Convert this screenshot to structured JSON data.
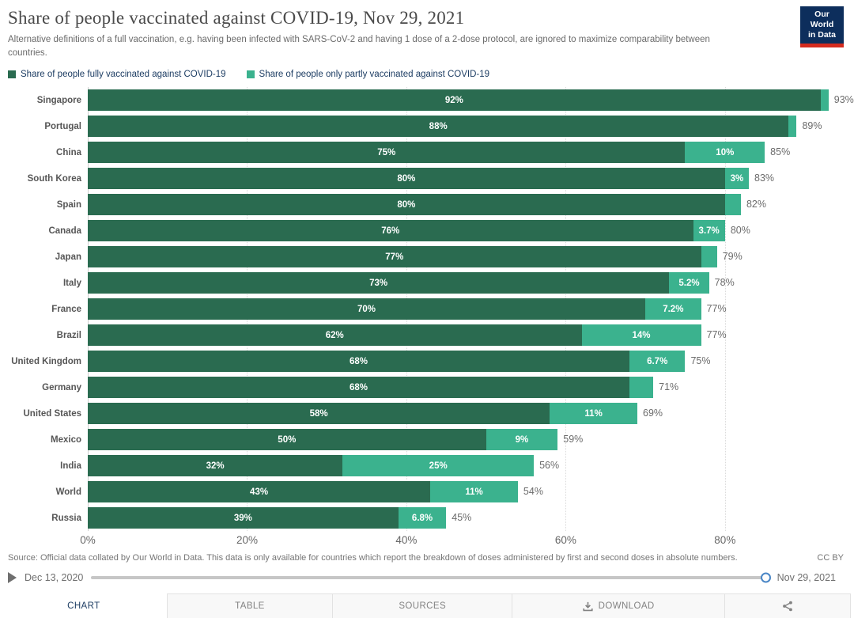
{
  "header": {
    "title": "Share of people vaccinated against COVID-19, Nov 29, 2021",
    "subtitle": "Alternative definitions of a full vaccination, e.g. having been infected with SARS-CoV-2 and having 1 dose of a 2-dose protocol, are ignored to maximize comparability between countries.",
    "logo_line1": "Our World",
    "logo_line2": "in Data",
    "logo_bg": "#0d2e5c",
    "logo_accent": "#d42b1f"
  },
  "legend": [
    {
      "label": "Share of people fully vaccinated against COVID-19",
      "color": "#2a6b50"
    },
    {
      "label": "Share of people only partly vaccinated against COVID-19",
      "color": "#3bb28e"
    }
  ],
  "chart_data": {
    "type": "bar",
    "stacked": true,
    "orientation": "horizontal",
    "title": "Share of people vaccinated against COVID-19, Nov 29, 2021",
    "series_names": [
      "Share of people fully vaccinated against COVID-19",
      "Share of people only partly vaccinated against COVID-19"
    ],
    "colors": {
      "fully": "#2a6b50",
      "partly": "#3bb28e"
    },
    "x_ticks": [
      "0%",
      "20%",
      "40%",
      "60%",
      "80%"
    ],
    "x_tick_values": [
      0,
      20,
      40,
      60,
      80
    ],
    "xmax": 96.2,
    "grid": "dotted-vertical",
    "rows": [
      {
        "country": "Singapore",
        "fully": 92,
        "fully_label": "92%",
        "partly_label": "",
        "total": 93,
        "total_label": "93%"
      },
      {
        "country": "Portugal",
        "fully": 88,
        "fully_label": "88%",
        "partly_label": "",
        "total": 89,
        "total_label": "89%"
      },
      {
        "country": "China",
        "fully": 75,
        "fully_label": "75%",
        "partly_label": "10%",
        "total": 85,
        "total_label": "85%"
      },
      {
        "country": "South Korea",
        "fully": 80,
        "fully_label": "80%",
        "partly_label": "3%",
        "total": 83,
        "total_label": "83%"
      },
      {
        "country": "Spain",
        "fully": 80,
        "fully_label": "80%",
        "partly_label": "",
        "total": 82,
        "total_label": "82%"
      },
      {
        "country": "Canada",
        "fully": 76,
        "fully_label": "76%",
        "partly_label": "3.7%",
        "total": 80,
        "total_label": "80%"
      },
      {
        "country": "Japan",
        "fully": 77,
        "fully_label": "77%",
        "partly_label": "",
        "total": 79,
        "total_label": "79%"
      },
      {
        "country": "Italy",
        "fully": 73,
        "fully_label": "73%",
        "partly_label": "5.2%",
        "total": 78,
        "total_label": "78%"
      },
      {
        "country": "France",
        "fully": 70,
        "fully_label": "70%",
        "partly_label": "7.2%",
        "total": 77,
        "total_label": "77%"
      },
      {
        "country": "Brazil",
        "fully": 62,
        "fully_label": "62%",
        "partly_label": "14%",
        "total": 77,
        "total_label": "77%"
      },
      {
        "country": "United Kingdom",
        "fully": 68,
        "fully_label": "68%",
        "partly_label": "6.7%",
        "total": 75,
        "total_label": "75%"
      },
      {
        "country": "Germany",
        "fully": 68,
        "fully_label": "68%",
        "partly_label": "",
        "total": 71,
        "total_label": "71%"
      },
      {
        "country": "United States",
        "fully": 58,
        "fully_label": "58%",
        "partly_label": "11%",
        "total": 69,
        "total_label": "69%"
      },
      {
        "country": "Mexico",
        "fully": 50,
        "fully_label": "50%",
        "partly_label": "9%",
        "total": 59,
        "total_label": "59%"
      },
      {
        "country": "India",
        "fully": 32,
        "fully_label": "32%",
        "partly_label": "25%",
        "total": 56,
        "total_label": "56%"
      },
      {
        "country": "World",
        "fully": 43,
        "fully_label": "43%",
        "partly_label": "11%",
        "total": 54,
        "total_label": "54%"
      },
      {
        "country": "Russia",
        "fully": 39,
        "fully_label": "39%",
        "partly_label": "6.8%",
        "total": 45,
        "total_label": "45%"
      }
    ]
  },
  "footer": {
    "source": "Source: Official data collated by Our World in Data. This data is only available for countries which report the breakdown of doses administered by first and second doses in absolute numbers.",
    "license": "CC BY"
  },
  "timeline": {
    "start_date": "Dec 13, 2020",
    "end_date": "Nov 29, 2021"
  },
  "tabs": [
    {
      "label": "CHART",
      "active": true
    },
    {
      "label": "TABLE",
      "active": false
    },
    {
      "label": "SOURCES",
      "active": false
    },
    {
      "label": "DOWNLOAD",
      "active": false
    },
    {
      "label": "",
      "active": false
    }
  ]
}
